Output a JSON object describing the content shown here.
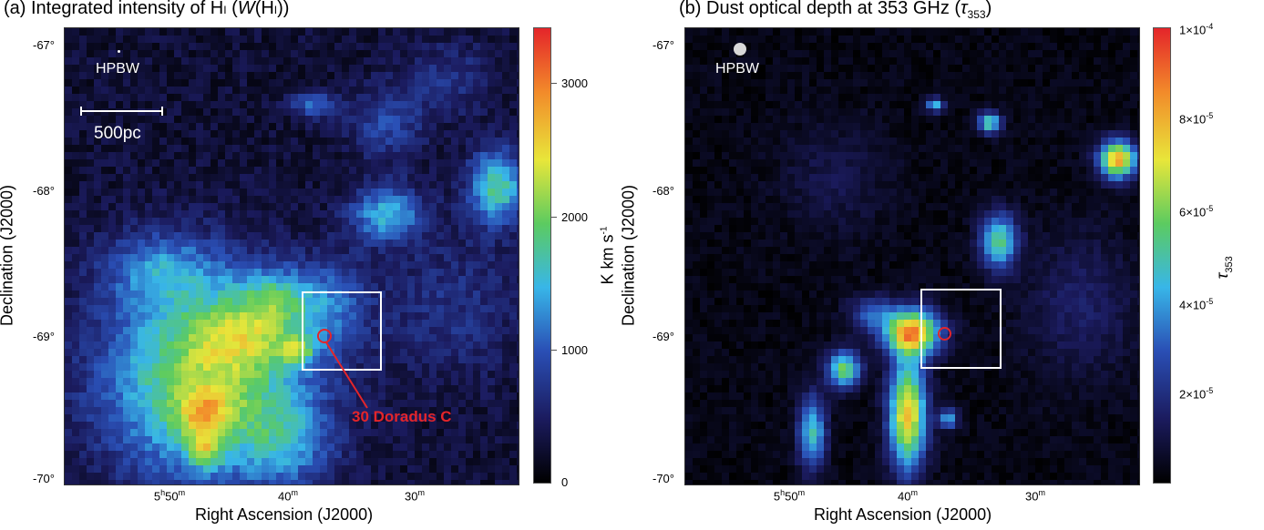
{
  "chart_data": [
    {
      "type": "heatmap",
      "title_prefix": "(a) Integrated intensity of H",
      "title_sub": "I",
      "title_mid": " (",
      "title_italic": "W",
      "title_paren": "(H",
      "title_sub2": "I",
      "title_end": "))",
      "xlabel": "Right Ascension (J2000)",
      "ylabel": "Declination (J2000)",
      "xticks": [
        "5h50m",
        "40m",
        "30m"
      ],
      "xtick_parts": [
        {
          "main": "5",
          "sup1": "h",
          "mid": "50",
          "sup2": "m"
        },
        {
          "main": "40",
          "sup1": "",
          "mid": "",
          "sup2": "m"
        },
        {
          "main": "30",
          "sup1": "",
          "mid": "",
          "sup2": "m"
        }
      ],
      "yticks": [
        "-67°",
        "-68°",
        "-69°",
        "-70°"
      ],
      "colorbar_label": "K km s-1",
      "colorbar_label_main": "K km s",
      "colorbar_label_sup": "-1",
      "colorbar_ticks": [
        "0",
        "1000",
        "2000",
        "3000"
      ],
      "colorbar_range": [
        0,
        3400
      ],
      "beam_label": "HPBW",
      "scalebar_label": "500pc",
      "source_label": "30 Doradus C",
      "colormap": [
        "#000000",
        "#1b1b5e",
        "#2a4fb5",
        "#38b6e8",
        "#5ccb60",
        "#e8e63a",
        "#f28a2a",
        "#e4252a"
      ]
    },
    {
      "type": "heatmap",
      "title_prefix": "(b) Dust optical depth at 353 GHz (",
      "title_tau": "τ",
      "title_tau_sub": "353",
      "title_end": ")",
      "xlabel": "Right Ascension (J2000)",
      "ylabel": "Declination (J2000)",
      "xtick_parts": [
        {
          "main": "5",
          "sup1": "h",
          "mid": "50",
          "sup2": "m"
        },
        {
          "main": "40",
          "sup1": "",
          "mid": "",
          "sup2": "m"
        },
        {
          "main": "30",
          "sup1": "",
          "mid": "",
          "sup2": "m"
        }
      ],
      "yticks": [
        "-67°",
        "-68°",
        "-69°",
        "-70°"
      ],
      "colorbar_label_tau": "τ",
      "colorbar_label_sub": "353",
      "colorbar_ticks": [
        "2×10-5",
        "4×10-5",
        "6×10-5",
        "8×10-5",
        "1×10-4"
      ],
      "colorbar_tick_parts": [
        {
          "main": "2×10",
          "sup": "-5"
        },
        {
          "main": "4×10",
          "sup": "-5"
        },
        {
          "main": "6×10",
          "sup": "-5"
        },
        {
          "main": "8×10",
          "sup": "-5"
        },
        {
          "main": "1×10",
          "sup": "-4"
        }
      ],
      "colorbar_range": [
        0,
        0.0001
      ],
      "beam_label": "HPBW",
      "colormap": [
        "#000000",
        "#1b1b5e",
        "#2a4fb5",
        "#38b6e8",
        "#5ccb60",
        "#e8e63a",
        "#f28a2a",
        "#e4252a"
      ]
    }
  ]
}
